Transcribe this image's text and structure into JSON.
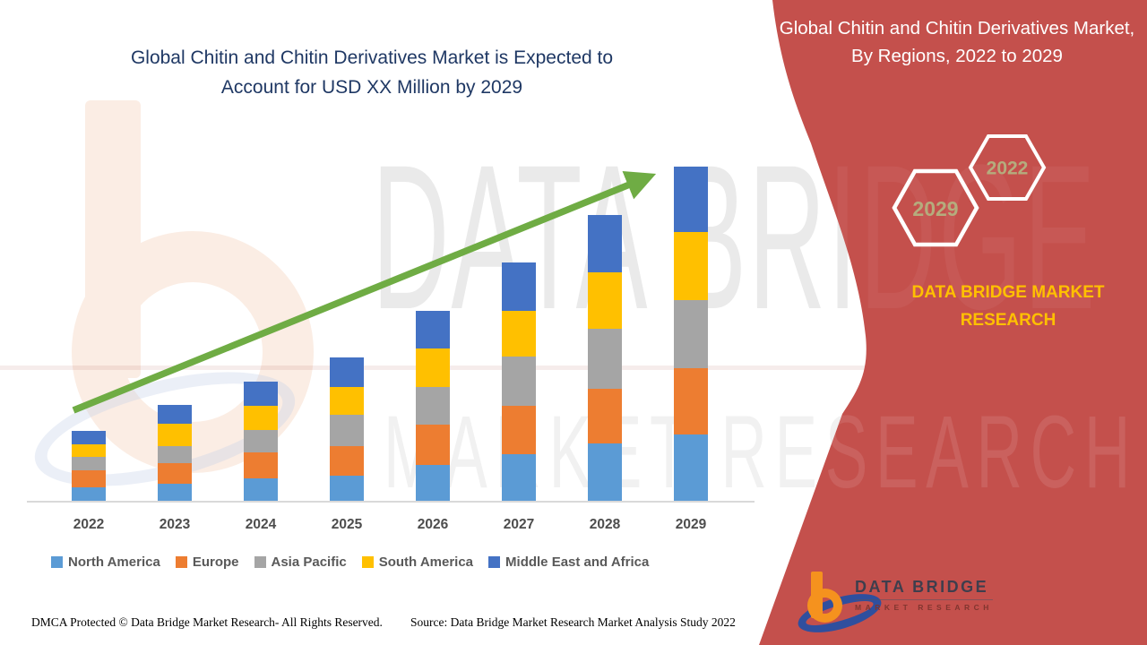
{
  "header": {
    "title_line1": "Global Chitin and Chitin Derivatives Market is Expected to",
    "title_line2": "Account for USD XX Million by 2029"
  },
  "side_panel": {
    "title": "Global Chitin and Chitin Derivatives Market, By Regions, 2022 to 2029",
    "hexagons": [
      {
        "label": "2029"
      },
      {
        "label": "2022"
      }
    ],
    "brand_text": "DATA BRIDGE MARKET RESEARCH",
    "background_color": "#c4504c",
    "hexagon_label_color": "#b5ac7d",
    "brand_text_color": "#ffc000"
  },
  "watermark": {
    "line1": "DATA BRIDGE",
    "line2": "MARKET RESEARCH"
  },
  "logo": {
    "title": "DATA BRIDGE",
    "subtitle": "MARKET RESEARCH"
  },
  "footer": {
    "left": "DMCA Protected © Data Bridge Market Research- All Rights Reserved.",
    "right": "Source: Data Bridge Market Research Market Analysis Study 2022"
  },
  "chart_data": {
    "type": "bar",
    "stacked": true,
    "title": "Global Chitin and Chitin Derivatives Market is Expected to Account for USD XX Million by 2029",
    "xlabel": "",
    "ylabel": "",
    "y_axis_visible": false,
    "units": "USD Million (values unlabeled on chart; series values are relative magnitudes estimated from bar pixel heights)",
    "legend_position": "bottom",
    "grid": false,
    "categories": [
      "2022",
      "2023",
      "2024",
      "2025",
      "2026",
      "2027",
      "2028",
      "2029"
    ],
    "series": [
      {
        "name": "North America",
        "color": "#5b9bd5",
        "values": [
          16,
          20,
          26,
          29,
          41,
          53,
          65,
          75
        ]
      },
      {
        "name": "Europe",
        "color": "#ed7d31",
        "values": [
          19,
          23,
          29,
          33,
          45,
          54,
          61,
          74
        ]
      },
      {
        "name": "Asia Pacific",
        "color": "#a5a5a5",
        "values": [
          15,
          19,
          25,
          35,
          42,
          55,
          67,
          76
        ]
      },
      {
        "name": "South America",
        "color": "#ffc000",
        "values": [
          14,
          25,
          27,
          31,
          43,
          51,
          63,
          76
        ]
      },
      {
        "name": "Middle East and Africa",
        "color": "#4472c4",
        "values": [
          15,
          21,
          27,
          33,
          42,
          54,
          64,
          73
        ]
      }
    ],
    "totals": [
      79,
      108,
      134,
      161,
      213,
      267,
      320,
      374
    ],
    "annotations": [
      {
        "type": "trend-arrow",
        "direction": "up-right",
        "color": "#6fac44"
      }
    ]
  }
}
